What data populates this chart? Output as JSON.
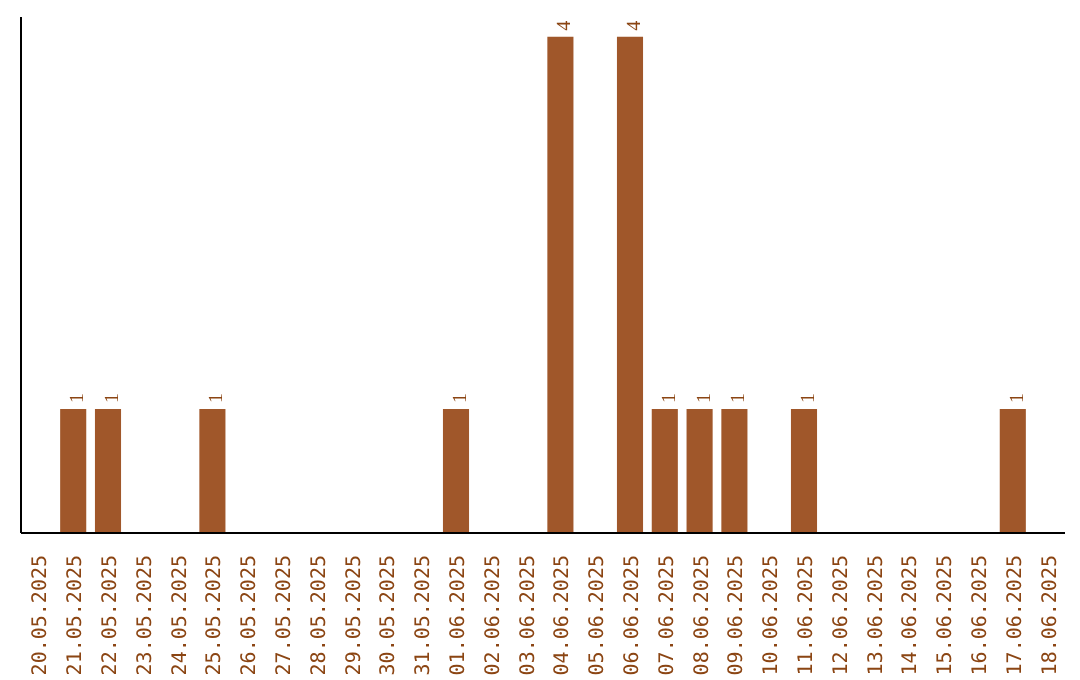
{
  "chart_data": {
    "type": "bar",
    "categories": [
      "20.05.2025",
      "21.05.2025",
      "22.05.2025",
      "23.05.2025",
      "24.05.2025",
      "25.05.2025",
      "26.05.2025",
      "27.05.2025",
      "28.05.2025",
      "29.05.2025",
      "30.05.2025",
      "31.05.2025",
      "01.06.2025",
      "02.06.2025",
      "03.06.2025",
      "04.06.2025",
      "05.06.2025",
      "06.06.2025",
      "07.06.2025",
      "08.06.2025",
      "09.06.2025",
      "10.06.2025",
      "11.06.2025",
      "12.06.2025",
      "13.06.2025",
      "14.06.2025",
      "15.06.2025",
      "16.06.2025",
      "17.06.2025",
      "18.06.2025"
    ],
    "values": [
      null,
      1,
      1,
      null,
      null,
      1,
      null,
      null,
      null,
      null,
      null,
      null,
      1,
      null,
      null,
      4,
      null,
      4,
      1,
      1,
      1,
      null,
      1,
      null,
      null,
      null,
      null,
      null,
      1,
      null
    ],
    "color": "#a0572a",
    "data_labels": true,
    "tick_labels": "x",
    "grid": false
  }
}
